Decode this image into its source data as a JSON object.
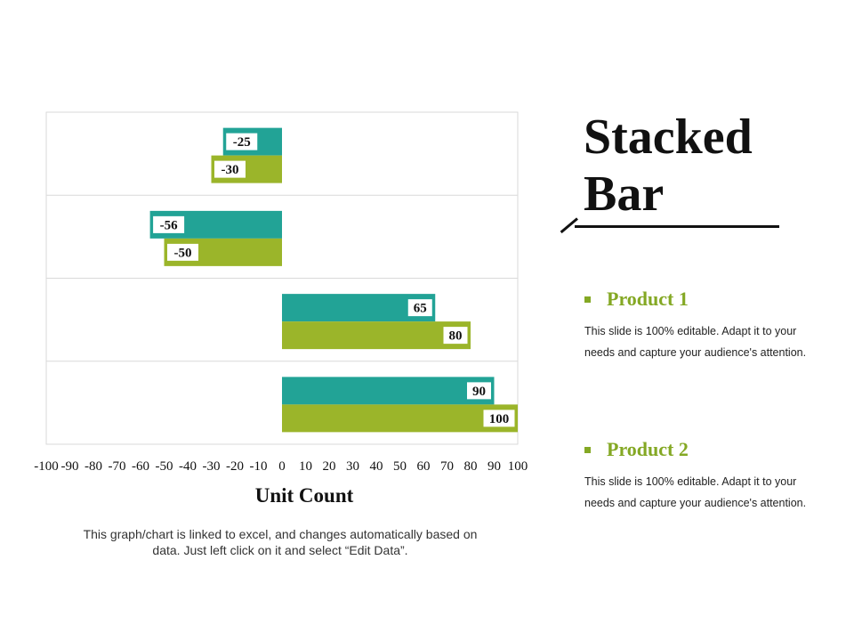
{
  "slide": {
    "title_line1": "Stacked",
    "title_line2": "Bar",
    "note": "This graph/chart is linked to excel, and changes automatically based on data. Just left click on it and select “Edit Data”."
  },
  "products": [
    {
      "title": "Product 1",
      "description": "This slide is 100% editable. Adapt it to your needs and capture your audience's attention."
    },
    {
      "title": "Product 2",
      "description": "This slide is 100% editable. Adapt it to your needs and capture your audience's attention."
    }
  ],
  "colors": {
    "teal": "#22a396",
    "green": "#9bb52a",
    "grid": "#d9d9d9",
    "bullet": "#84a824"
  },
  "chart_data": {
    "type": "bar",
    "orientation": "horizontal",
    "title": "",
    "xlabel": "Unit Count",
    "ylabel": "",
    "xlim": [
      -100,
      100
    ],
    "xticks": [
      "-100",
      "-90",
      "-80",
      "-70",
      "-60",
      "-50",
      "-40",
      "-30",
      "-20",
      "-10",
      "0",
      "10",
      "20",
      "30",
      "40",
      "50",
      "60",
      "70",
      "80",
      "90",
      "100"
    ],
    "categories": [
      "",
      "",
      "",
      ""
    ],
    "series": [
      {
        "color": "#22a396",
        "values": [
          -25,
          -56,
          65,
          90
        ]
      },
      {
        "color": "#9bb52a",
        "values": [
          -30,
          -50,
          80,
          100
        ]
      }
    ],
    "grid": true,
    "legend": "none"
  }
}
